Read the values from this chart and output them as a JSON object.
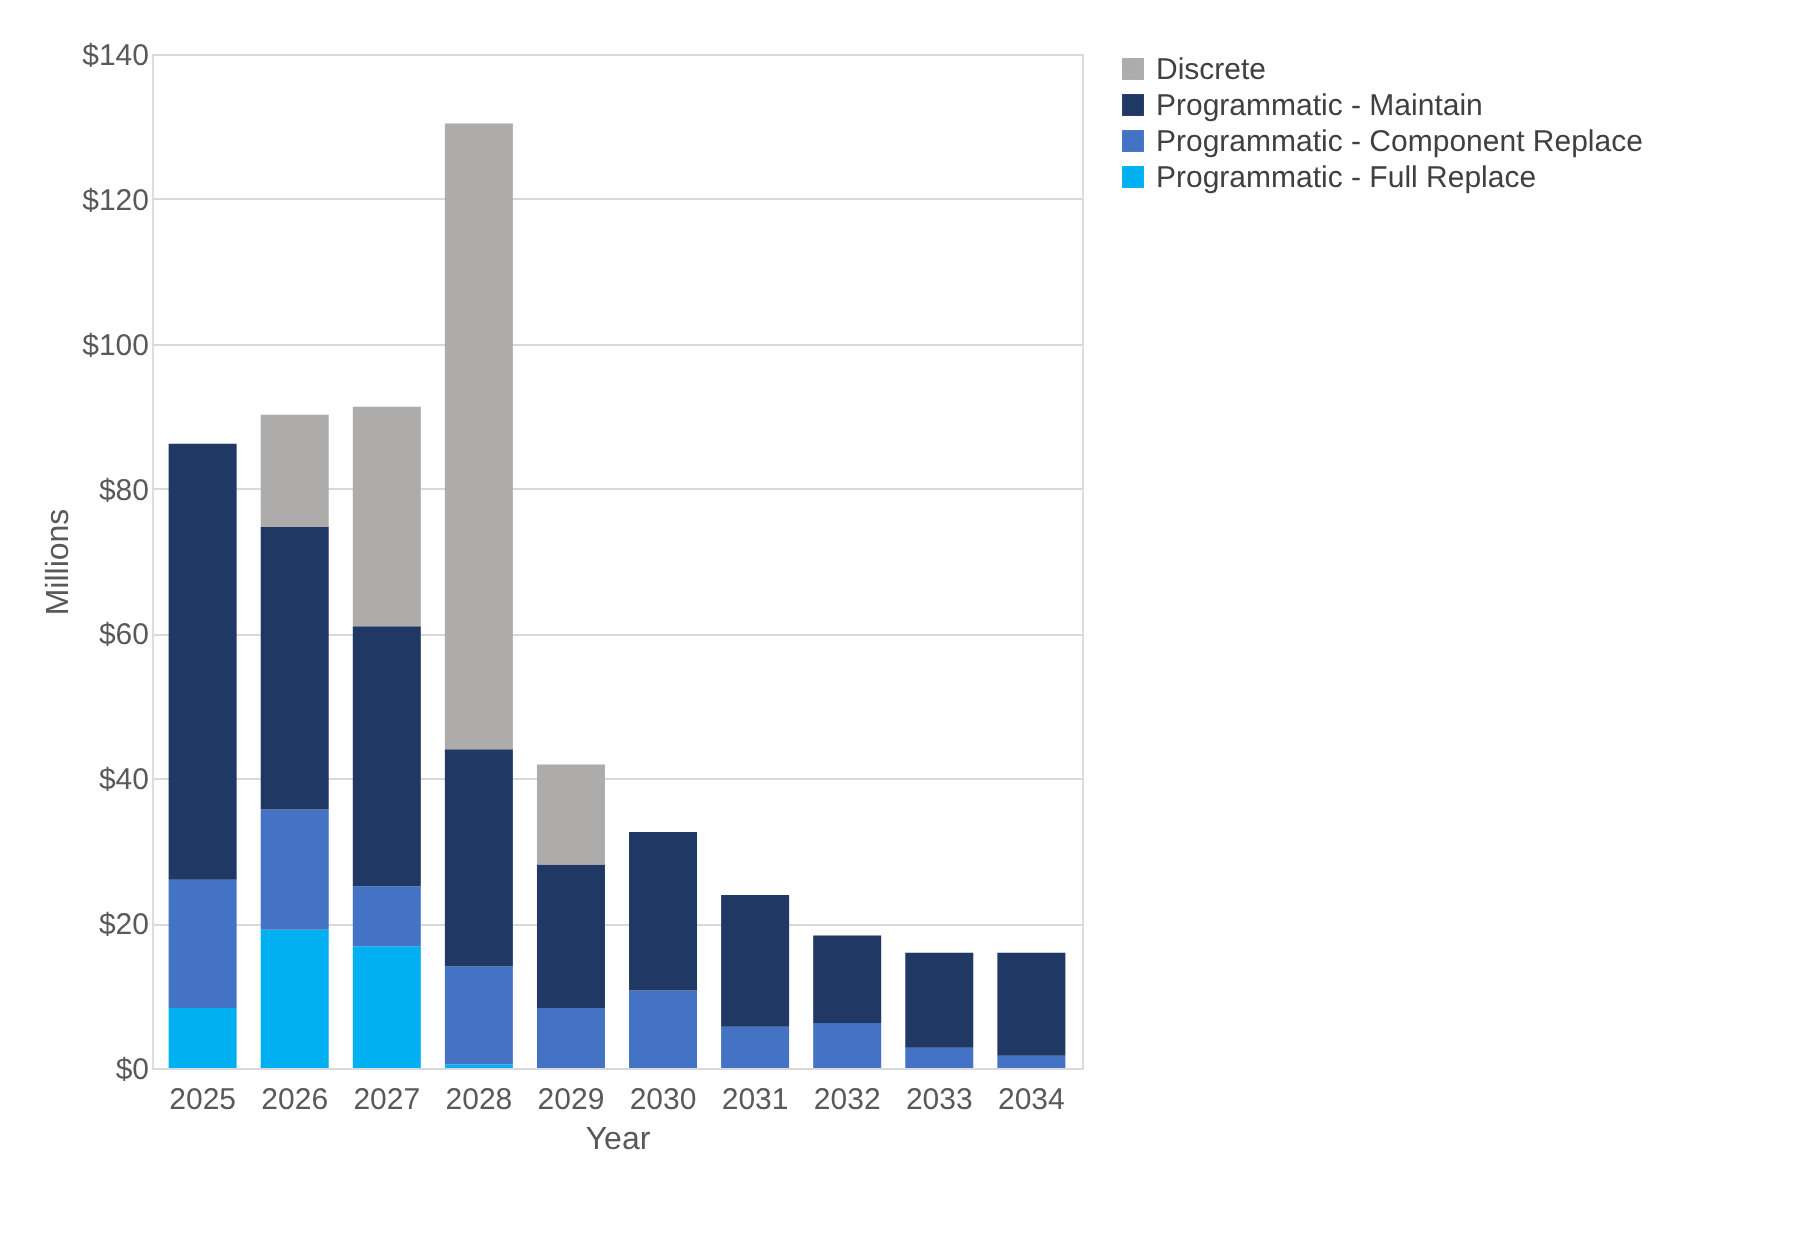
{
  "chart_data": {
    "type": "bar",
    "stacked": true,
    "xlabel": "Year",
    "ylabel": "Millions",
    "categories": [
      "2025",
      "2026",
      "2027",
      "2028",
      "2029",
      "2030",
      "2031",
      "2032",
      "2033",
      "2034"
    ],
    "series": [
      {
        "name": "Programmatic - Full Replace",
        "color": "#00b0f0",
        "values": [
          8.3,
          19.1,
          16.8,
          0.5,
          0,
          0,
          0,
          0,
          0,
          0
        ]
      },
      {
        "name": "Programmatic - Component Replace",
        "color": "#4472c4",
        "values": [
          17.7,
          16.6,
          8.3,
          13.5,
          8.3,
          10.7,
          5.7,
          6.2,
          2.8,
          1.7
        ]
      },
      {
        "name": "Programmatic - Maintain",
        "color": "#203864",
        "values": [
          60.2,
          39.0,
          35.9,
          30.0,
          19.8,
          21.9,
          18.2,
          12.1,
          13.1,
          14.2
        ]
      },
      {
        "name": "Discrete",
        "color": "#aeabab",
        "values": [
          0,
          15.5,
          30.3,
          86.4,
          13.8,
          0,
          0,
          0,
          0,
          0
        ]
      }
    ],
    "ylim": [
      0,
      140
    ],
    "yticks": [
      {
        "value": 0,
        "label": "$0"
      },
      {
        "value": 20,
        "label": "$20"
      },
      {
        "value": 40,
        "label": "$40"
      },
      {
        "value": 60,
        "label": "$60"
      },
      {
        "value": 80,
        "label": "$80"
      },
      {
        "value": 100,
        "label": "$100"
      },
      {
        "value": 120,
        "label": "$120"
      },
      {
        "value": 140,
        "label": "$140"
      }
    ],
    "grid": "y",
    "legend": "right"
  }
}
